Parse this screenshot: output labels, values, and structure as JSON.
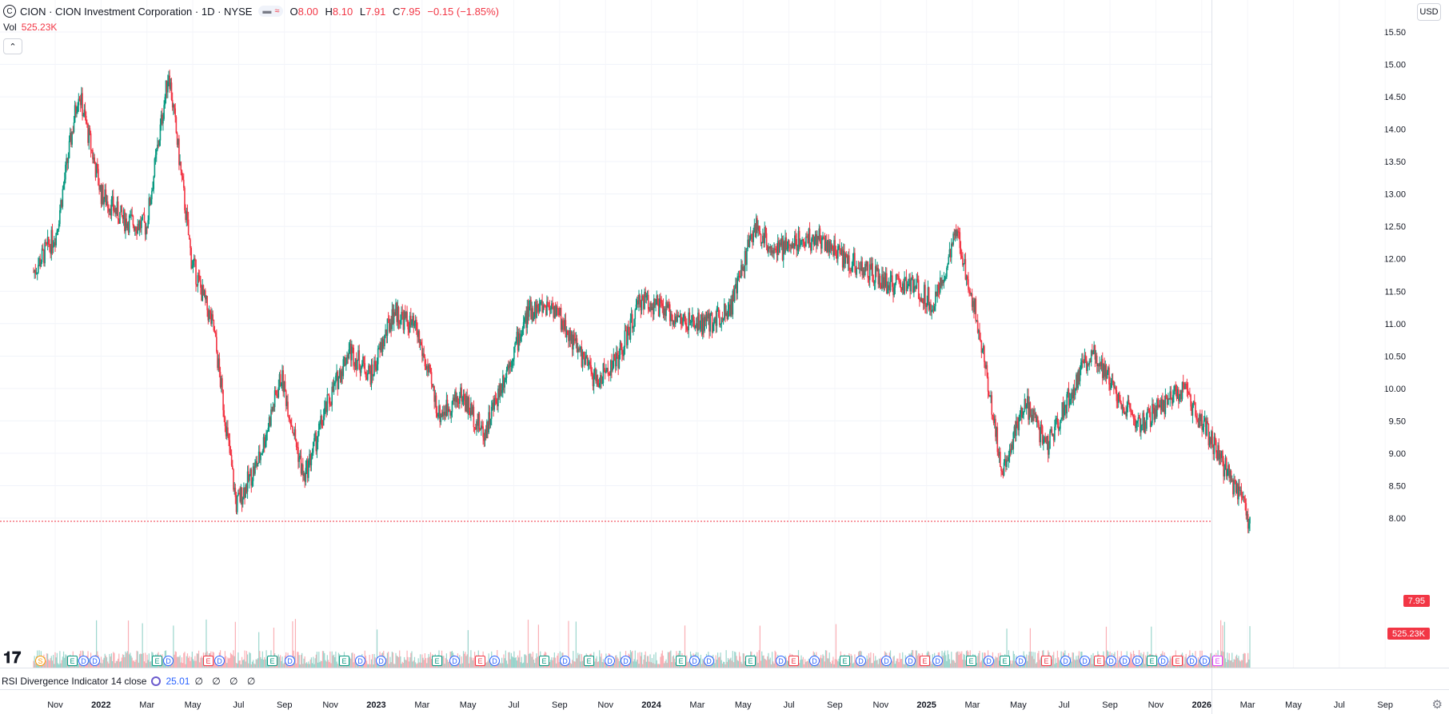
{
  "legend": {
    "symbol_badge": "C",
    "title": "CION · CION Investment Corporation · 1D · NYSE",
    "pill_a": "▬",
    "pill_b": "≈",
    "o_label": "O",
    "o_value": "8.00",
    "h_label": "H",
    "h_value": "8.10",
    "l_label": "L",
    "l_value": "7.91",
    "c_label": "C",
    "c_value": "7.95",
    "change": "−0.15 (−1.85%)"
  },
  "volume_legend": {
    "label": "Vol",
    "value": "525.23K"
  },
  "collapse_icon": "chevron-up-icon",
  "currency": "USD",
  "last_price_tag": "7.95",
  "last_volume_tag": "525.23K",
  "rsi_legend": {
    "label": "RSI Divergence Indicator 14 close",
    "value": "25.01",
    "placeholders": "∅ ∅ ∅ ∅"
  },
  "colors": {
    "up": "#089981",
    "down": "#f23645",
    "accent": "#2962ff"
  },
  "events": [
    "S",
    "E",
    "D",
    "D",
    "E",
    "D",
    "E",
    "D",
    "E",
    "D",
    "E",
    "D",
    "D",
    "E",
    "D",
    "E",
    "D",
    "E",
    "D",
    "E",
    "D",
    "D",
    "E",
    "D",
    "D",
    "E",
    "D",
    "E",
    "D",
    "E",
    "D",
    "D",
    "D",
    "E",
    "D",
    "E",
    "D",
    "E",
    "D",
    "E",
    "D",
    "D",
    "E",
    "D",
    "D",
    "D",
    "E",
    "D",
    "E",
    "D",
    "D",
    "E"
  ],
  "chart_data": {
    "type": "candlestick",
    "y_ticks": [
      "15.50",
      "15.00",
      "14.50",
      "14.00",
      "13.50",
      "13.00",
      "12.50",
      "12.00",
      "11.50",
      "11.00",
      "10.50",
      "10.00",
      "9.50",
      "9.00",
      "8.50",
      "8.00"
    ],
    "ylim": [
      7.0,
      15.7
    ],
    "x_ticks": [
      {
        "label": "Nov",
        "major": false
      },
      {
        "label": "2022",
        "major": true
      },
      {
        "label": "Mar",
        "major": false
      },
      {
        "label": "May",
        "major": false
      },
      {
        "label": "Jul",
        "major": false
      },
      {
        "label": "Sep",
        "major": false
      },
      {
        "label": "Nov",
        "major": false
      },
      {
        "label": "2023",
        "major": true
      },
      {
        "label": "Mar",
        "major": false
      },
      {
        "label": "May",
        "major": false
      },
      {
        "label": "Jul",
        "major": false
      },
      {
        "label": "Sep",
        "major": false
      },
      {
        "label": "Nov",
        "major": false
      },
      {
        "label": "2024",
        "major": true
      },
      {
        "label": "Mar",
        "major": false
      },
      {
        "label": "May",
        "major": false
      },
      {
        "label": "Jul",
        "major": false
      },
      {
        "label": "Sep",
        "major": false
      },
      {
        "label": "Nov",
        "major": false
      },
      {
        "label": "2025",
        "major": true
      },
      {
        "label": "Mar",
        "major": false
      },
      {
        "label": "May",
        "major": false
      },
      {
        "label": "Jul",
        "major": false
      },
      {
        "label": "Sep",
        "major": false
      },
      {
        "label": "Nov",
        "major": false
      },
      {
        "label": "2026",
        "major": true
      },
      {
        "label": "Mar",
        "major": false
      },
      {
        "label": "May",
        "major": false
      },
      {
        "label": "Jul",
        "major": false
      },
      {
        "label": "Sep",
        "major": false
      }
    ],
    "price_path": [
      [
        "2021-09",
        11.8
      ],
      [
        "2021-10",
        12.4
      ],
      [
        "2021-11",
        14.6
      ],
      [
        "2021-12",
        13.0
      ],
      [
        "2022-01",
        12.6
      ],
      [
        "2022-02",
        12.5
      ],
      [
        "2022-03",
        14.9
      ],
      [
        "2022-04",
        12.0
      ],
      [
        "2022-05",
        10.9
      ],
      [
        "2022-06",
        8.2
      ],
      [
        "2022-07",
        8.9
      ],
      [
        "2022-08",
        10.2
      ],
      [
        "2022-09",
        8.6
      ],
      [
        "2022-10",
        9.7
      ],
      [
        "2022-11",
        10.6
      ],
      [
        "2022-12",
        10.2
      ],
      [
        "2023-01",
        11.2
      ],
      [
        "2023-02",
        10.9
      ],
      [
        "2023-03",
        9.6
      ],
      [
        "2023-04",
        9.9
      ],
      [
        "2023-05",
        9.3
      ],
      [
        "2023-06",
        10.3
      ],
      [
        "2023-07",
        11.2
      ],
      [
        "2023-08",
        11.3
      ],
      [
        "2023-09",
        10.7
      ],
      [
        "2023-10",
        10.1
      ],
      [
        "2023-11",
        10.5
      ],
      [
        "2023-12",
        11.4
      ],
      [
        "2024-01",
        11.2
      ],
      [
        "2024-02",
        11.0
      ],
      [
        "2024-03",
        11.0
      ],
      [
        "2024-04",
        11.3
      ],
      [
        "2024-05",
        12.5
      ],
      [
        "2024-06",
        12.1
      ],
      [
        "2024-07",
        12.3
      ],
      [
        "2024-08",
        12.3
      ],
      [
        "2024-09",
        12.0
      ],
      [
        "2024-10",
        11.8
      ],
      [
        "2024-11",
        11.6
      ],
      [
        "2024-12",
        11.6
      ],
      [
        "2025-01",
        11.3
      ],
      [
        "2025-02",
        12.4
      ],
      [
        "2025-03",
        10.9
      ],
      [
        "2025-04",
        8.7
      ],
      [
        "2025-05",
        9.8
      ],
      [
        "2025-06",
        9.1
      ],
      [
        "2025-07",
        9.9
      ],
      [
        "2025-08",
        10.6
      ],
      [
        "2025-09",
        10.0
      ],
      [
        "2025-10",
        9.4
      ],
      [
        "2025-11",
        9.7
      ],
      [
        "2025-12",
        10.0
      ],
      [
        "2026-01",
        9.4
      ],
      [
        "2026-02",
        8.7
      ],
      [
        "2026-03",
        7.95
      ]
    ]
  }
}
